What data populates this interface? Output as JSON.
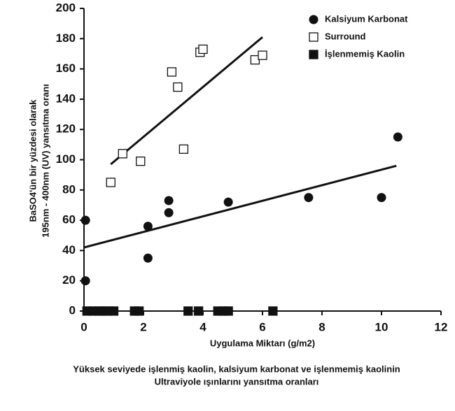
{
  "chart_data": {
    "type": "scatter",
    "ylabel": [
      "BaSO4'ün bir yüzdesi olarak",
      "195nm - 400nm (UV) yansıtma oranı"
    ],
    "xlabel": "Uygulama Miktarı (g/m2)",
    "caption": [
      "Yüksek seviyede işlenmiş kaolin, kalsiyum karbonat ve işlenmemiş kaolinin",
      "Ultraviyole ışınlarını yansıtma oranları"
    ],
    "xlim": [
      0,
      12
    ],
    "xticks": [
      0,
      2,
      4,
      6,
      8,
      10,
      12
    ],
    "ylim": [
      0,
      200
    ],
    "yticks": [
      0,
      20,
      40,
      60,
      80,
      100,
      120,
      140,
      160,
      180,
      200
    ],
    "legend": "top-right",
    "series": [
      {
        "name": "Kalsiyum Karbonat",
        "color": "#111111",
        "marker": "circle",
        "x": [
          0.05,
          0.05,
          2.15,
          2.15,
          2.85,
          2.85,
          4.85,
          7.55,
          10.0,
          10.55
        ],
        "values": [
          60,
          20,
          56,
          35,
          73,
          65,
          72,
          75,
          75,
          115
        ],
        "trend": {
          "x": [
            0,
            10.5
          ],
          "values": [
            42,
            96
          ]
        }
      },
      {
        "name": "Surround",
        "color": "#111111",
        "marker": "square-open",
        "x": [
          0.9,
          1.3,
          1.9,
          2.95,
          3.15,
          3.35,
          3.9,
          4.0,
          5.75,
          6.0
        ],
        "values": [
          85,
          104,
          99,
          158,
          148,
          107,
          171,
          173,
          166,
          169
        ],
        "trend": {
          "x": [
            0.9,
            6.0
          ],
          "values": [
            97,
            181
          ]
        }
      },
      {
        "name": "İşlenmemiş Kaolin",
        "color": "#111111",
        "marker": "square",
        "x": [
          0.1,
          0.3,
          0.5,
          0.65,
          0.8,
          1.0,
          1.7,
          1.85,
          3.5,
          3.85,
          4.5,
          4.7,
          4.85,
          6.35
        ],
        "values": [
          0,
          0,
          0,
          0,
          0,
          0,
          0,
          0,
          0,
          0,
          0,
          0,
          0,
          0
        ]
      }
    ]
  }
}
